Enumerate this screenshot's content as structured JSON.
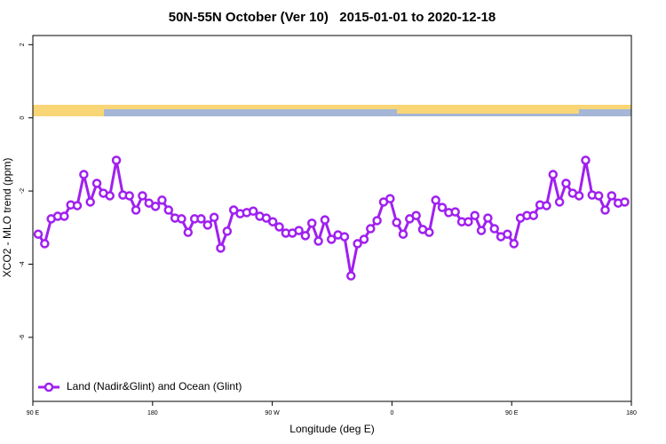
{
  "chart_data": {
    "type": "line",
    "title": "50N-55N October (Ver 10)   2015-01-01 to 2020-12-18",
    "x_label": "Longitude (deg E)",
    "y_label": "XCO2 - MLO trend (ppm)",
    "xlim": [
      90,
      540
    ],
    "xticks": [
      {
        "value": 90,
        "label": "90 E"
      },
      180,
      {
        "value": 270,
        "label": "90 W"
      },
      {
        "value": 360,
        "label": "0"
      },
      {
        "value": 450,
        "label": "90 E"
      },
      {
        "value": 540,
        "label": "180"
      }
    ],
    "ylim": [
      -7.75,
      2.25
    ],
    "yticks": [
      2,
      0,
      -2,
      -4,
      -6
    ],
    "legend": "bottom-left",
    "x": [
      94,
      98.9,
      103.8,
      108.7,
      113.6,
      118.5,
      123.4,
      128.3,
      133.2,
      138.1,
      143,
      147.9,
      152.8,
      157.7,
      162.6,
      167.5,
      172.4,
      177.3,
      182.2,
      187.1,
      192,
      196.9,
      201.8,
      206.7,
      211.6,
      216.5,
      221.4,
      226.3,
      231.2,
      236.1,
      241,
      245.9,
      250.8,
      255.7,
      260.6,
      265.5,
      270.4,
      275.3,
      280.2,
      285.1,
      290,
      294.9,
      299.8,
      304.7,
      309.6,
      314.5,
      319.4,
      324.3,
      329.2,
      334.1,
      339,
      343.9,
      348.8,
      353.7,
      358.6,
      363.5,
      368.4,
      373.3,
      378.2,
      383.1,
      388,
      392.9,
      397.8,
      402.7,
      407.6,
      412.5,
      417.4,
      422.3,
      427.2,
      432.1,
      437,
      441.9,
      446.8,
      451.7,
      456.6,
      461.5,
      466.4,
      471.3,
      476.2,
      481.1,
      486,
      490.9,
      495.8,
      500.7,
      505.6,
      510.5,
      515.4,
      520.3,
      525.2,
      530.1,
      535
    ],
    "series": [
      {
        "name": "Land (Nadir&Glint) and Ocean (Glint)",
        "color": "#a020f0",
        "values": [
          -3.18,
          -3.44,
          -2.76,
          -2.69,
          -2.69,
          -2.38,
          -2.4,
          -1.55,
          -2.3,
          -1.79,
          -2.06,
          -2.13,
          -1.16,
          -2.11,
          -2.13,
          -2.52,
          -2.13,
          -2.33,
          -2.42,
          -2.25,
          -2.52,
          -2.74,
          -2.76,
          -3.13,
          -2.76,
          -2.76,
          -2.93,
          -2.72,
          -3.56,
          -3.1,
          -2.52,
          -2.62,
          -2.59,
          -2.55,
          -2.69,
          -2.74,
          -2.84,
          -2.98,
          -3.15,
          -3.15,
          -3.08,
          -3.22,
          -2.88,
          -3.37,
          -2.79,
          -3.32,
          -3.2,
          -3.25,
          -4.32,
          -3.44,
          -3.32,
          -3.03,
          -2.81,
          -2.3,
          -2.21,
          -2.86,
          -3.18,
          -2.76,
          -2.67,
          -3.05,
          -3.13,
          -2.25,
          -2.45,
          -2.59,
          -2.57,
          -2.84,
          -2.84,
          -2.67,
          -3.08,
          -2.74,
          -3.03,
          -3.25,
          -3.18,
          -3.44,
          -2.74,
          -2.67,
          -2.67,
          -2.38,
          -2.4,
          -1.55,
          -2.3,
          -1.79,
          -2.06,
          -2.13,
          -1.16,
          -2.11,
          -2.13,
          -2.52,
          -2.13,
          -2.33,
          -2.3
        ]
      }
    ]
  }
}
